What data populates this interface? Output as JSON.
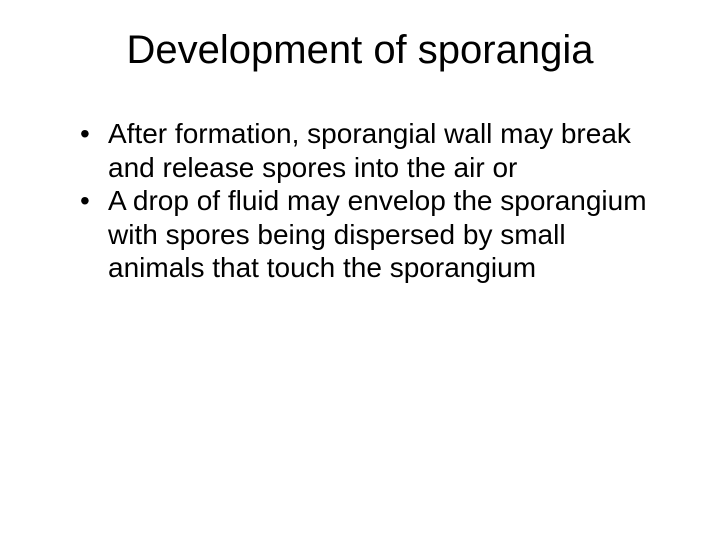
{
  "slide": {
    "title": "Development of sporangia",
    "title_fontsize": 40,
    "body_fontsize": 28,
    "text_color": "#000000",
    "background_color": "#ffffff",
    "font_family": "Arial",
    "bullets": [
      "After formation, sporangial wall may break and release spores into the air or",
      "A drop of fluid may envelop the sporangium with spores being dispersed by small animals that touch the sporangium"
    ]
  }
}
